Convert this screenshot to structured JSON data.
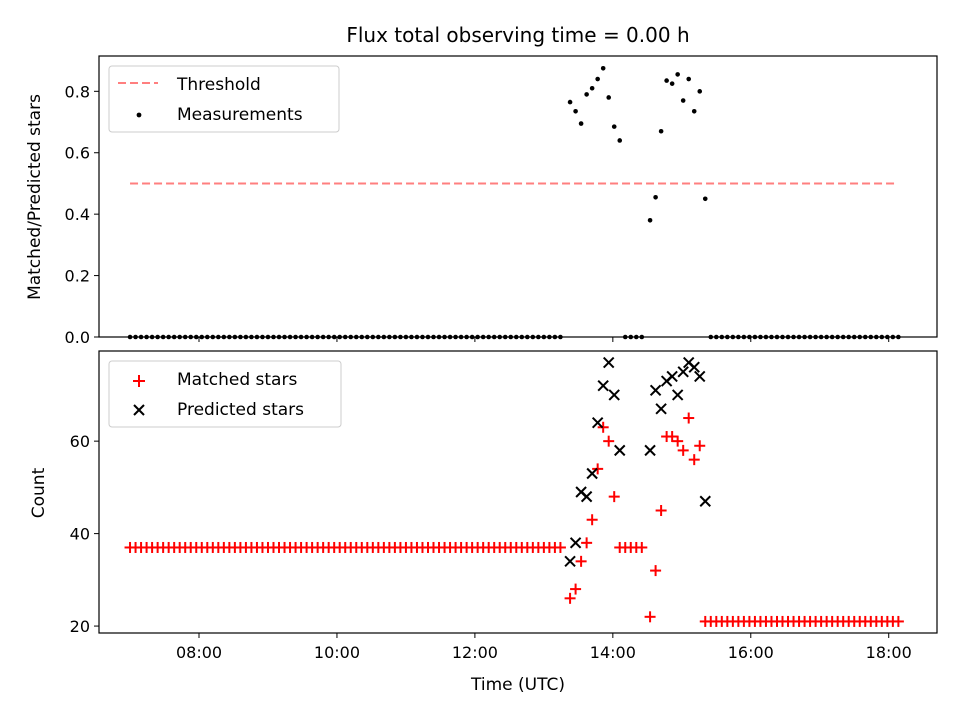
{
  "chart_data": [
    {
      "type": "scatter",
      "title": "Flux total observing time = 0.00 h",
      "xlabel": "",
      "ylabel": "Matched/Predicted stars",
      "xlim": [
        6.55,
        18.7
      ],
      "ylim": [
        0.0,
        0.915
      ],
      "yticks": [
        0.0,
        0.2,
        0.4,
        0.6,
        0.8
      ],
      "ytick_labels": [
        "0.0",
        "0.2",
        "0.4",
        "0.6",
        "0.8"
      ],
      "xticks": [
        8,
        10,
        12,
        14,
        16,
        18
      ],
      "legend_position": "top-left",
      "grid": false,
      "threshold": {
        "name": "Threshold",
        "value": 0.5,
        "x_range": [
          7.0,
          18.08
        ],
        "color": "#ff7f7f",
        "style": "dashed"
      },
      "series": [
        {
          "name": "Measurements",
          "marker": "dot",
          "color": "#000000",
          "points": [
            [
              13.38,
              0.765
            ],
            [
              13.46,
              0.735
            ],
            [
              13.54,
              0.695
            ],
            [
              13.62,
              0.79
            ],
            [
              13.7,
              0.81
            ],
            [
              13.78,
              0.84
            ],
            [
              13.86,
              0.875
            ],
            [
              13.94,
              0.78
            ],
            [
              14.02,
              0.685
            ],
            [
              14.1,
              0.64
            ],
            [
              14.54,
              0.38
            ],
            [
              14.62,
              0.455
            ],
            [
              14.7,
              0.67
            ],
            [
              14.78,
              0.835
            ],
            [
              14.86,
              0.825
            ],
            [
              14.94,
              0.855
            ],
            [
              15.02,
              0.77
            ],
            [
              15.1,
              0.84
            ],
            [
              15.18,
              0.735
            ],
            [
              15.26,
              0.8
            ],
            [
              15.34,
              0.45
            ]
          ],
          "zero_runs": [
            {
              "start": 7.0,
              "end": 13.3,
              "step": 0.08
            },
            {
              "start": 14.18,
              "end": 14.46,
              "step": 0.08
            },
            {
              "start": 15.42,
              "end": 18.15,
              "step": 0.08
            }
          ],
          "zero_value": 0.0
        }
      ]
    },
    {
      "type": "scatter",
      "title": "",
      "xlabel": "Time (UTC)",
      "ylabel": "Count",
      "xlim": [
        6.55,
        18.7
      ],
      "ylim": [
        18.5,
        79.5
      ],
      "yticks": [
        20,
        40,
        60
      ],
      "ytick_labels": [
        "20",
        "40",
        "60"
      ],
      "xticks": [
        8,
        10,
        12,
        14,
        16,
        18
      ],
      "xtick_labels": [
        "08:00",
        "10:00",
        "12:00",
        "14:00",
        "16:00",
        "18:00"
      ],
      "legend_position": "top-left",
      "grid": false,
      "series": [
        {
          "name": "Matched stars",
          "marker": "plus",
          "color": "#ff0000",
          "baseline_runs": [
            {
              "start": 7.0,
              "end": 13.3,
              "step": 0.08,
              "value": 37
            },
            {
              "start": 14.1,
              "end": 14.46,
              "step": 0.08,
              "value": 37
            },
            {
              "start": 15.34,
              "end": 18.15,
              "step": 0.08,
              "value": 21
            }
          ],
          "points": [
            [
              13.38,
              26
            ],
            [
              13.46,
              28
            ],
            [
              13.54,
              34
            ],
            [
              13.62,
              38
            ],
            [
              13.7,
              43
            ],
            [
              13.78,
              54
            ],
            [
              13.86,
              63
            ],
            [
              13.94,
              60
            ],
            [
              14.02,
              48
            ],
            [
              14.54,
              22
            ],
            [
              14.62,
              32
            ],
            [
              14.7,
              45
            ],
            [
              14.78,
              61
            ],
            [
              14.86,
              61
            ],
            [
              14.94,
              60
            ],
            [
              15.02,
              58
            ],
            [
              15.1,
              65
            ],
            [
              15.18,
              56
            ],
            [
              15.26,
              59
            ]
          ]
        },
        {
          "name": "Predicted stars",
          "marker": "x",
          "color": "#000000",
          "points": [
            [
              13.38,
              34
            ],
            [
              13.46,
              38
            ],
            [
              13.54,
              49
            ],
            [
              13.62,
              48
            ],
            [
              13.7,
              53
            ],
            [
              13.78,
              64
            ],
            [
              13.86,
              72
            ],
            [
              13.94,
              77
            ],
            [
              14.02,
              70
            ],
            [
              14.1,
              58
            ],
            [
              14.54,
              58
            ],
            [
              14.62,
              71
            ],
            [
              14.7,
              67
            ],
            [
              14.78,
              73
            ],
            [
              14.86,
              74
            ],
            [
              14.94,
              70
            ],
            [
              15.02,
              75
            ],
            [
              15.1,
              77
            ],
            [
              15.18,
              76
            ],
            [
              15.26,
              74
            ],
            [
              15.34,
              47
            ]
          ]
        }
      ]
    }
  ]
}
